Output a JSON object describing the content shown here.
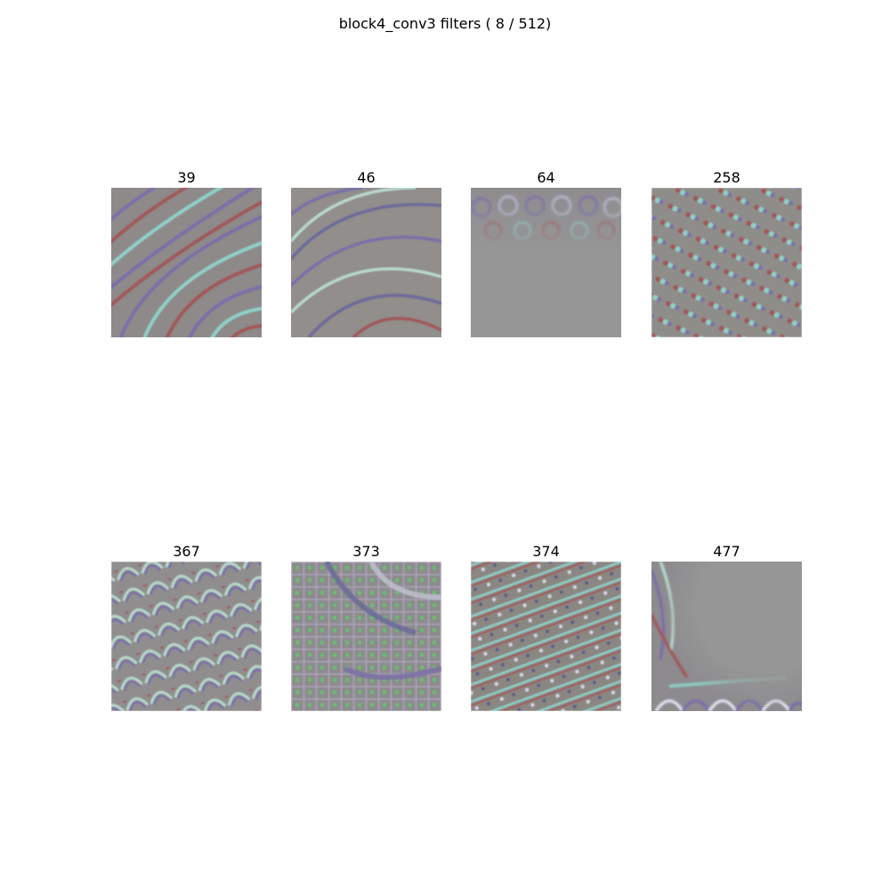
{
  "figure": {
    "title": "block4_conv3 filters ( 8 / 512)"
  },
  "filters": [
    {
      "label": "39",
      "pattern": "swirl-stripes"
    },
    {
      "label": "46",
      "pattern": "scale-arcs"
    },
    {
      "label": "64",
      "pattern": "top-bubbles-gray-fade"
    },
    {
      "label": "258",
      "pattern": "diagonal-dots"
    },
    {
      "label": "367",
      "pattern": "arc-rows"
    },
    {
      "label": "373",
      "pattern": "grid-mesh-green"
    },
    {
      "label": "374",
      "pattern": "diagonal-dotted-lines"
    },
    {
      "label": "477",
      "pattern": "bottom-left-scales-gray-fade"
    }
  ],
  "colors": {
    "background": "#ffffff",
    "neutral_gray": "#969696",
    "accent_purple": "#7a6fa8",
    "accent_red": "#a0585a",
    "accent_cyan": "#8fd0c8",
    "accent_green": "#62c46a"
  }
}
